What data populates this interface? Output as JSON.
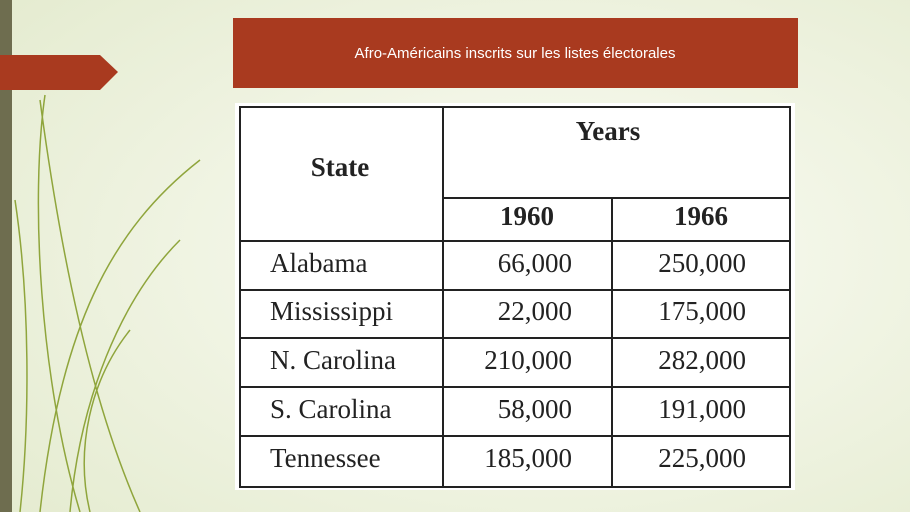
{
  "header": {
    "title": "Afro-Américains inscrits sur les listes électorales"
  },
  "table": {
    "state_header": "State",
    "years_header": "Years",
    "years": [
      "1960",
      "1966"
    ],
    "rows": [
      [
        "Alabama",
        "66,000",
        "250,000"
      ],
      [
        "Mississippi",
        "22,000",
        "175,000"
      ],
      [
        "N. Carolina",
        "210,000",
        "282,000"
      ],
      [
        "S. Carolina",
        "58,000",
        "191,000"
      ],
      [
        "Tennessee",
        "185,000",
        "225,000"
      ]
    ]
  }
}
